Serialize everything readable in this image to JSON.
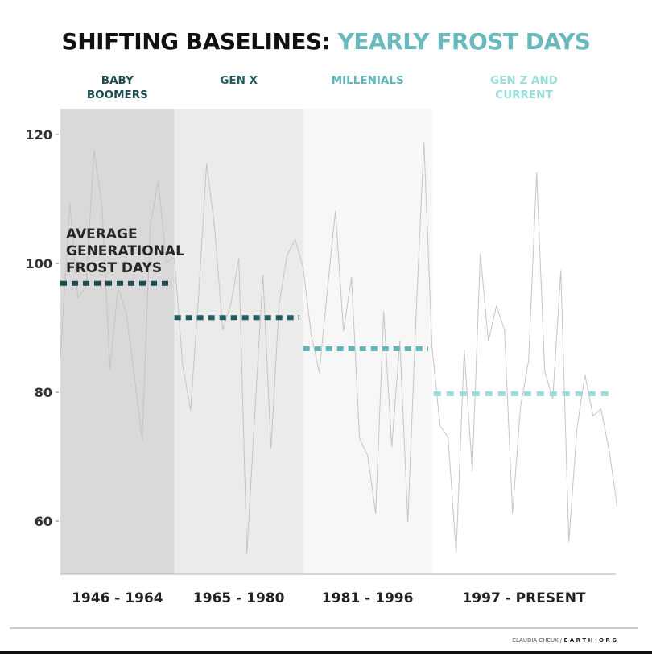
{
  "chart_data": {
    "type": "line",
    "title": "SHIFTING BASELINES:",
    "title_accent": "YEARLY FROST DAYS",
    "xlabel": "",
    "ylabel": "",
    "ylim": [
      52,
      124
    ],
    "yticks": [
      60,
      80,
      100,
      120
    ],
    "grid": false,
    "annotation": [
      "AVERAGE",
      "GENERATIONAL",
      "FROST DAYS"
    ],
    "generations": [
      {
        "label": [
          "BABY",
          "BOOMERS"
        ],
        "period": "1946 - 1964",
        "average": 96.9,
        "color": "#1b4b4d",
        "band": "#d9d9d9",
        "start": 1951,
        "end": 1965
      },
      {
        "label": [
          "GEN X"
        ],
        "period": "1965 - 1980",
        "average": 91.6,
        "color": "#1f5d5f",
        "band": "#ebebeb",
        "start": 1965,
        "end": 1981
      },
      {
        "label": [
          "MILLENIALS"
        ],
        "period": "1981 - 1996",
        "average": 86.75,
        "color": "#5fb5b7",
        "band": "#f7f7f7",
        "start": 1981,
        "end": 1997
      },
      {
        "label": [
          "GEN Z AND",
          "CURRENT"
        ],
        "period": "1997 - PRESENT",
        "average": 79.75,
        "color": "#9adcd8",
        "band": "#ffffff",
        "start": 1997,
        "end": 2020
      }
    ],
    "series": [
      {
        "x": [
          1951,
          1952,
          1953,
          1954,
          1955,
          1956,
          1957,
          1958,
          1959,
          1960,
          1961,
          1962,
          1963,
          1964,
          1965,
          1966,
          1967,
          1968,
          1969,
          1970,
          1971,
          1972,
          1973,
          1974,
          1975,
          1976,
          1977,
          1978,
          1979,
          1980,
          1981,
          1982,
          1983,
          1984,
          1985,
          1986,
          1987,
          1988,
          1989,
          1990,
          1991,
          1992,
          1993,
          1994,
          1995,
          1996,
          1997,
          1998,
          1999,
          2000,
          2001,
          2002,
          2003,
          2004,
          2005,
          2006,
          2007,
          2008,
          2009,
          2010,
          2011,
          2012,
          2013,
          2014,
          2015,
          2016,
          2017,
          2018,
          2019,
          2020
        ],
        "values": [
          85.3,
          109.4,
          94.7,
          96.3,
          117.5,
          109,
          83.6,
          96.3,
          92.3,
          82.7,
          72.6,
          105.9,
          112.7,
          100.2,
          100.9,
          84.4,
          77.2,
          95,
          115.5,
          105.5,
          89.7,
          93.6,
          100.8,
          55,
          77,
          98.2,
          71.3,
          93.6,
          101.3,
          103.7,
          99.3,
          88.8,
          83.1,
          95.8,
          108.1,
          89.5,
          97.8,
          72.8,
          70.2,
          61.2,
          92.5,
          71.5,
          87.9,
          59.9,
          91.4,
          118.8,
          87,
          74.8,
          73,
          55,
          86.6,
          67.8,
          101.5,
          87.9,
          93.4,
          89.7,
          61.2,
          77.8,
          84.9,
          114,
          83.3,
          78.9,
          98.9,
          56.8,
          74.3,
          82.7,
          76.3,
          77.4,
          71,
          62.3
        ],
        "color": "#c4c4c4"
      }
    ],
    "title_colors": {
      "main": "#111111",
      "accent": "#6ab9bc"
    }
  },
  "footer": {
    "author": "CLAUDIA CHEUK /",
    "brand": "E A R T H · O R G"
  }
}
